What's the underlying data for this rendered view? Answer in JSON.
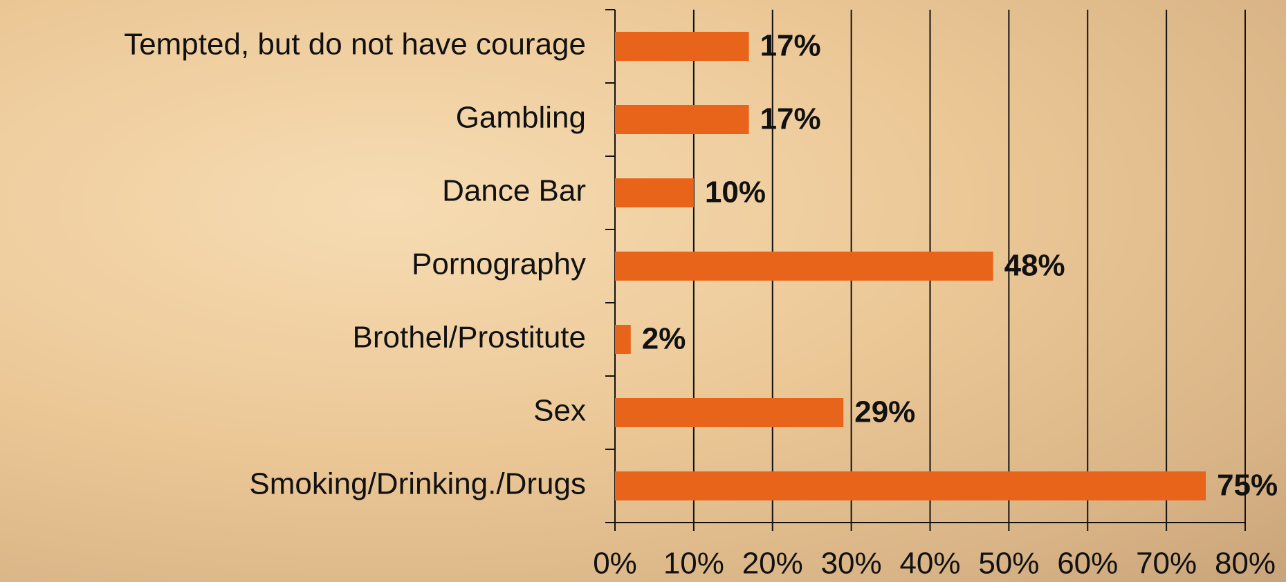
{
  "chart_data": {
    "type": "bar",
    "orientation": "horizontal",
    "categories": [
      "Tempted, but do not have courage",
      "Gambling",
      "Dance Bar",
      "Pornography",
      "Brothel/Prostitute",
      "Sex",
      "Smoking/Drinking./Drugs"
    ],
    "values": [
      17,
      17,
      10,
      48,
      2,
      29,
      75
    ],
    "value_labels": [
      "17%",
      "17%",
      "10%",
      "48%",
      "2%",
      "29%",
      "75%"
    ],
    "color": "#e8641a",
    "xlim": [
      0,
      80
    ],
    "xticks": [
      {
        "value": 0,
        "label": "0%"
      },
      {
        "value": 10,
        "label": "10%"
      },
      {
        "value": 20,
        "label": "20%"
      },
      {
        "value": 30,
        "label": "30%"
      },
      {
        "value": 40,
        "label": "40%"
      },
      {
        "value": 50,
        "label": "50%"
      },
      {
        "value": 60,
        "label": "60%"
      },
      {
        "value": 70,
        "label": "70%"
      },
      {
        "value": 80,
        "label": "80%"
      }
    ],
    "grid": true
  }
}
